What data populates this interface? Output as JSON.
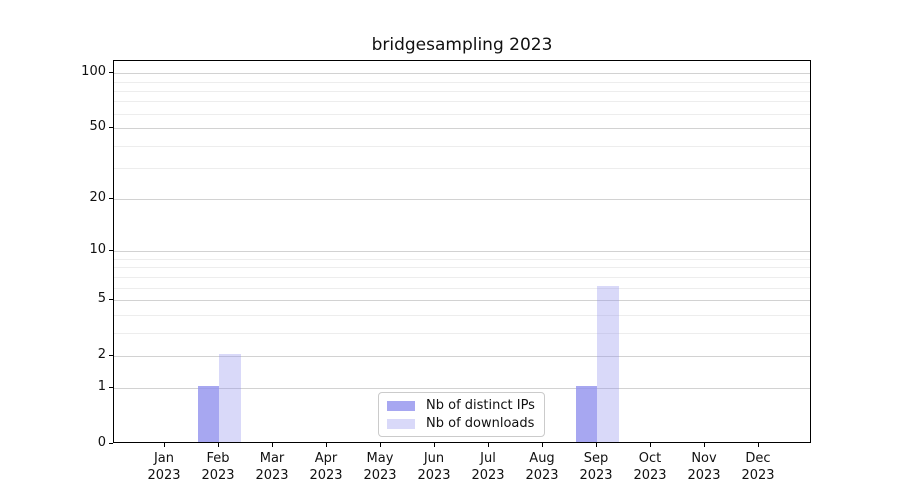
{
  "chart_data": {
    "type": "bar",
    "title": "bridgesampling 2023",
    "categories": [
      "Jan 2023",
      "Feb 2023",
      "Mar 2023",
      "Apr 2023",
      "May 2023",
      "Jun 2023",
      "Jul 2023",
      "Aug 2023",
      "Sep 2023",
      "Oct 2023",
      "Nov 2023",
      "Dec 2023"
    ],
    "series": [
      {
        "name": "Nb of distinct IPs",
        "color": "#9191ed",
        "alpha": 0.8,
        "values": [
          0,
          1,
          0,
          0,
          0,
          0,
          0,
          0,
          1,
          0,
          0,
          0
        ]
      },
      {
        "name": "Nb of downloads",
        "color": "#9191ed",
        "alpha": 0.35,
        "values": [
          0,
          2,
          0,
          0,
          0,
          0,
          0,
          0,
          6,
          0,
          0,
          0
        ]
      }
    ],
    "xlabel": "",
    "ylabel": "",
    "yscale": "log(1+x)",
    "yticks": [
      0,
      1,
      2,
      5,
      10,
      20,
      50,
      100
    ],
    "yticks_minor": [
      3,
      4,
      6,
      7,
      8,
      9,
      30,
      40,
      60,
      70,
      80,
      90
    ],
    "ylim": [
      0,
      117
    ],
    "grid": "horizontal",
    "legend_position": "lower center"
  }
}
